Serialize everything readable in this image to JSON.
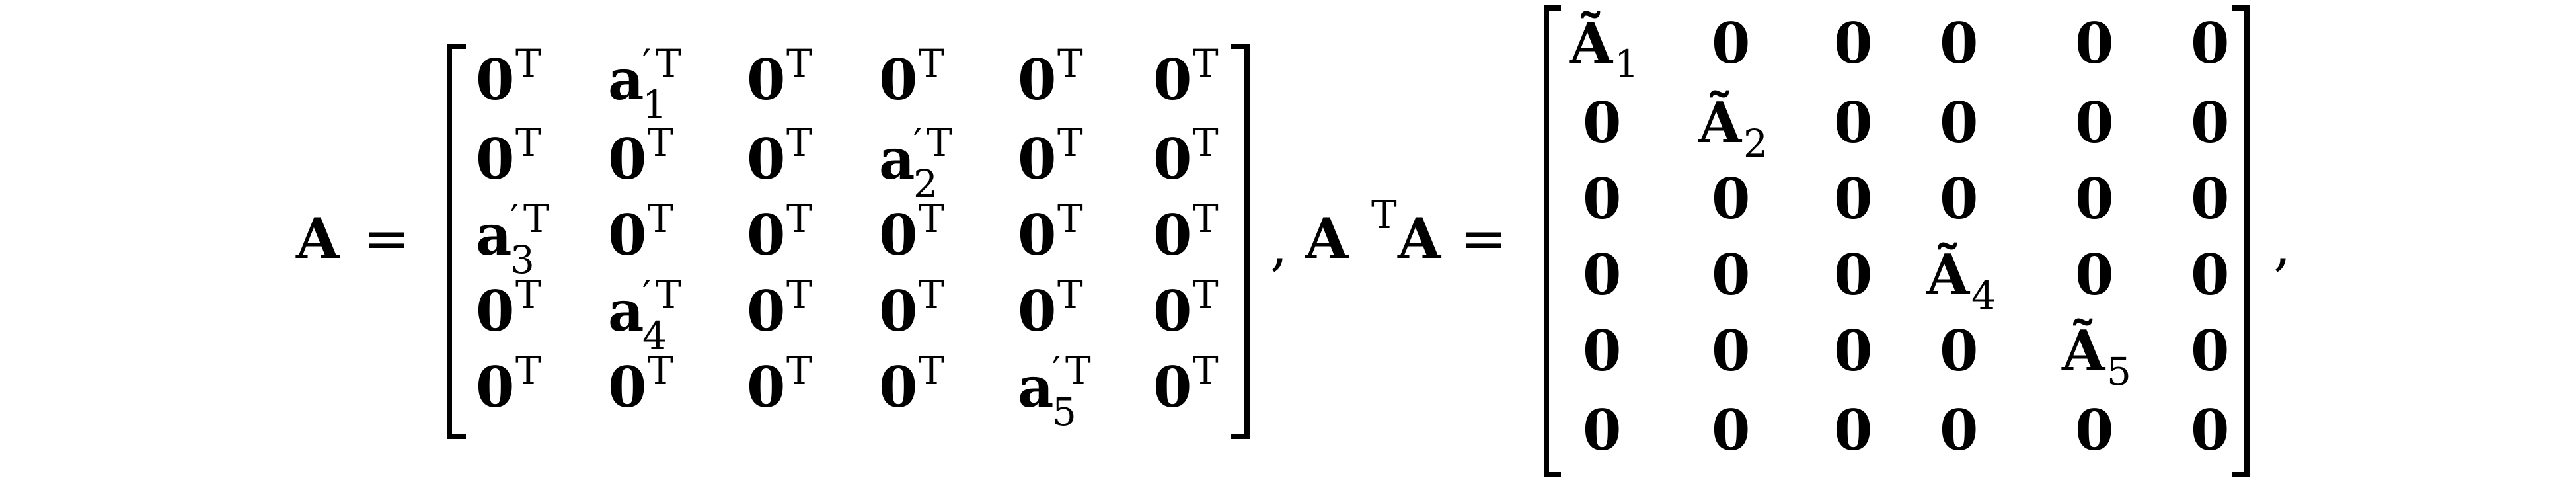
{
  "lhs": {
    "matrix_name": "A",
    "equals": "=",
    "comma": ",",
    "product_left": "A",
    "product_transpose": "T",
    "product_right": "A",
    "equals2": "=",
    "final_comma": ","
  },
  "matrix_A": {
    "rows": [
      [
        {
          "base": "0",
          "prime": "",
          "sub": "",
          "sup": "T"
        },
        {
          "base": "a",
          "prime": "′",
          "sub": "1",
          "sup": "T"
        },
        {
          "base": "0",
          "prime": "",
          "sub": "",
          "sup": "T"
        },
        {
          "base": "0",
          "prime": "",
          "sub": "",
          "sup": "T"
        },
        {
          "base": "0",
          "prime": "",
          "sub": "",
          "sup": "T"
        },
        {
          "base": "0",
          "prime": "",
          "sub": "",
          "sup": "T"
        }
      ],
      [
        {
          "base": "0",
          "prime": "",
          "sub": "",
          "sup": "T"
        },
        {
          "base": "0",
          "prime": "",
          "sub": "",
          "sup": "T"
        },
        {
          "base": "0",
          "prime": "",
          "sub": "",
          "sup": "T"
        },
        {
          "base": "a",
          "prime": "′",
          "sub": "2",
          "sup": "T"
        },
        {
          "base": "0",
          "prime": "",
          "sub": "",
          "sup": "T"
        },
        {
          "base": "0",
          "prime": "",
          "sub": "",
          "sup": "T"
        }
      ],
      [
        {
          "base": "a",
          "prime": "′",
          "sub": "3",
          "sup": "T"
        },
        {
          "base": "0",
          "prime": "",
          "sub": "",
          "sup": "T"
        },
        {
          "base": "0",
          "prime": "",
          "sub": "",
          "sup": "T"
        },
        {
          "base": "0",
          "prime": "",
          "sub": "",
          "sup": "T"
        },
        {
          "base": "0",
          "prime": "",
          "sub": "",
          "sup": "T"
        },
        {
          "base": "0",
          "prime": "",
          "sub": "",
          "sup": "T"
        }
      ],
      [
        {
          "base": "0",
          "prime": "",
          "sub": "",
          "sup": "T"
        },
        {
          "base": "a",
          "prime": "′",
          "sub": "4",
          "sup": "T"
        },
        {
          "base": "0",
          "prime": "",
          "sub": "",
          "sup": "T"
        },
        {
          "base": "0",
          "prime": "",
          "sub": "",
          "sup": "T"
        },
        {
          "base": "0",
          "prime": "",
          "sub": "",
          "sup": "T"
        },
        {
          "base": "0",
          "prime": "",
          "sub": "",
          "sup": "T"
        }
      ],
      [
        {
          "base": "0",
          "prime": "",
          "sub": "",
          "sup": "T"
        },
        {
          "base": "0",
          "prime": "",
          "sub": "",
          "sup": "T"
        },
        {
          "base": "0",
          "prime": "",
          "sub": "",
          "sup": "T"
        },
        {
          "base": "0",
          "prime": "",
          "sub": "",
          "sup": "T"
        },
        {
          "base": "a",
          "prime": "′",
          "sub": "5",
          "sup": "T"
        },
        {
          "base": "0",
          "prime": "",
          "sub": "",
          "sup": "T"
        }
      ]
    ]
  },
  "matrix_ATA": {
    "rows": [
      [
        {
          "base": "Ã",
          "sub": "1"
        },
        {
          "base": "0",
          "sub": ""
        },
        {
          "base": "0",
          "sub": ""
        },
        {
          "base": "0",
          "sub": ""
        },
        {
          "base": "0",
          "sub": ""
        },
        {
          "base": "0",
          "sub": ""
        }
      ],
      [
        {
          "base": "0",
          "sub": ""
        },
        {
          "base": "Ã",
          "sub": "2"
        },
        {
          "base": "0",
          "sub": ""
        },
        {
          "base": "0",
          "sub": ""
        },
        {
          "base": "0",
          "sub": ""
        },
        {
          "base": "0",
          "sub": ""
        }
      ],
      [
        {
          "base": "0",
          "sub": ""
        },
        {
          "base": "0",
          "sub": ""
        },
        {
          "base": "0",
          "sub": ""
        },
        {
          "base": "0",
          "sub": ""
        },
        {
          "base": "0",
          "sub": ""
        },
        {
          "base": "0",
          "sub": ""
        }
      ],
      [
        {
          "base": "0",
          "sub": ""
        },
        {
          "base": "0",
          "sub": ""
        },
        {
          "base": "0",
          "sub": ""
        },
        {
          "base": "Ã",
          "sub": "4"
        },
        {
          "base": "0",
          "sub": ""
        },
        {
          "base": "0",
          "sub": ""
        }
      ],
      [
        {
          "base": "0",
          "sub": ""
        },
        {
          "base": "0",
          "sub": ""
        },
        {
          "base": "0",
          "sub": ""
        },
        {
          "base": "0",
          "sub": ""
        },
        {
          "base": "Ã",
          "sub": "5"
        },
        {
          "base": "0",
          "sub": ""
        }
      ],
      [
        {
          "base": "0",
          "sub": ""
        },
        {
          "base": "0",
          "sub": ""
        },
        {
          "base": "0",
          "sub": ""
        },
        {
          "base": "0",
          "sub": ""
        },
        {
          "base": "0",
          "sub": ""
        },
        {
          "base": "0",
          "sub": ""
        }
      ]
    ]
  }
}
